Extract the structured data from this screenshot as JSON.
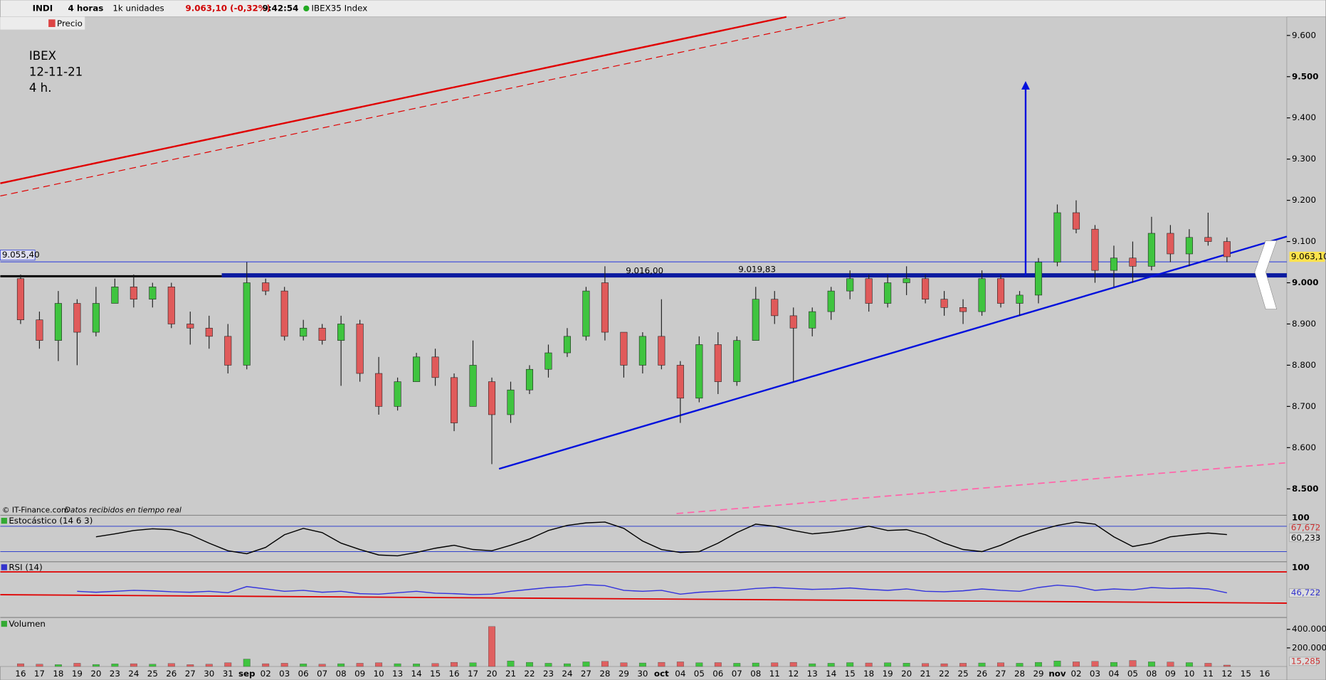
{
  "toolbar": {
    "symbol": "INDI",
    "period": "4 horas",
    "units": "1k unidades",
    "price_change": "9.063,10 (-0,32%)",
    "time": "9:42:54",
    "instrument": "IBEX35 Index",
    "layer": "Precio"
  },
  "notes": {
    "lines": [
      "IBEX",
      "12-11-21",
      "4 h."
    ],
    "credit": "© IT-Finance.com",
    "credit_note": "Datos recibidos en tiempo real"
  },
  "chart": {
    "type": "candlestick",
    "annotations": [
      {
        "label": "9.016,00"
      },
      {
        "label": "9.019,83"
      }
    ],
    "level_label": "9.055,40",
    "last_price_label": "9.063,10",
    "dates": [
      "16",
      "17",
      "18",
      "19",
      "20",
      "23",
      "24",
      "25",
      "26",
      "27",
      "30",
      "31",
      "sep",
      "02",
      "03",
      "06",
      "07",
      "08",
      "09",
      "10",
      "13",
      "14",
      "15",
      "16",
      "17",
      "20",
      "21",
      "22",
      "23",
      "24",
      "27",
      "28",
      "29",
      "30",
      "oct",
      "04",
      "05",
      "06",
      "07",
      "08",
      "11",
      "12",
      "13",
      "14",
      "15",
      "18",
      "19",
      "20",
      "21",
      "22",
      "25",
      "26",
      "27",
      "28",
      "29",
      "nov",
      "02",
      "03",
      "04",
      "05",
      "08",
      "09",
      "10",
      "11",
      "12",
      "15",
      "16"
    ],
    "open": [
      9010,
      8910,
      8860,
      8950,
      8880,
      8950,
      8990,
      8960,
      8990,
      8900,
      8890,
      8870,
      8800,
      9000,
      8980,
      8870,
      8890,
      8860,
      8900,
      8780,
      8700,
      8760,
      8820,
      8770,
      8700,
      8760,
      8680,
      8740,
      8790,
      8830,
      8870,
      9000,
      8880,
      8800,
      8870,
      8800,
      8720,
      8850,
      8760,
      8860,
      8960,
      8920,
      8890,
      8930,
      8980,
      9010,
      8950,
      9000,
      9010,
      8960,
      8940,
      8930,
      9010,
      8950,
      8970,
      9050,
      9170,
      9130,
      9030,
      9060,
      9040,
      9120,
      9070,
      9110,
      9100,
      null,
      null
    ],
    "high": [
      9020,
      8930,
      8980,
      8960,
      8990,
      9010,
      9020,
      9000,
      9000,
      8930,
      8920,
      8900,
      9050,
      9010,
      8990,
      8910,
      8900,
      8920,
      8910,
      8820,
      8770,
      8830,
      8840,
      8780,
      8860,
      8770,
      8760,
      8800,
      8850,
      8890,
      8990,
      9040,
      8880,
      8880,
      8960,
      8810,
      8870,
      8880,
      8870,
      8990,
      8980,
      8940,
      8940,
      8990,
      9030,
      9020,
      9020,
      9040,
      9020,
      8980,
      8960,
      9030,
      9020,
      8980,
      9060,
      9190,
      9200,
      9140,
      9090,
      9100,
      9160,
      9140,
      9130,
      9170,
      9110,
      null,
      null
    ],
    "low": [
      8900,
      8840,
      8810,
      8800,
      8870,
      8950,
      8940,
      8940,
      8890,
      8850,
      8840,
      8780,
      8790,
      8970,
      8860,
      8860,
      8850,
      8750,
      8760,
      8680,
      8690,
      8760,
      8750,
      8640,
      8700,
      8560,
      8660,
      8730,
      8770,
      8820,
      8860,
      8860,
      8770,
      8780,
      8790,
      8660,
      8710,
      8730,
      8750,
      8860,
      8900,
      8760,
      8870,
      8910,
      8960,
      8930,
      8940,
      8970,
      8950,
      8920,
      8900,
      8920,
      8940,
      8920,
      8950,
      9040,
      9120,
      9000,
      8990,
      9000,
      9030,
      9050,
      9040,
      9090,
      9050,
      null,
      null
    ],
    "close": [
      8910,
      8860,
      8950,
      8880,
      8950,
      8990,
      8960,
      8990,
      8900,
      8890,
      8870,
      8800,
      9000,
      8980,
      8870,
      8890,
      8860,
      8900,
      8780,
      8700,
      8760,
      8820,
      8770,
      8660,
      8800,
      8680,
      8740,
      8790,
      8830,
      8870,
      8980,
      8880,
      8800,
      8870,
      8800,
      8720,
      8850,
      8760,
      8860,
      8960,
      8920,
      8890,
      8930,
      8980,
      9010,
      8950,
      9000,
      9010,
      8960,
      8940,
      8930,
      9010,
      8950,
      8970,
      9050,
      9170,
      9130,
      9030,
      9060,
      9040,
      9120,
      9070,
      9110,
      9100,
      9063.1,
      null,
      null
    ],
    "ylim": [
      8440,
      9645
    ],
    "yticks": [
      {
        "value": 9600,
        "label": "9.600"
      },
      {
        "value": 9500,
        "label": "9.500"
      },
      {
        "value": 9400,
        "label": "9.400"
      },
      {
        "value": 9300,
        "label": "9.300"
      },
      {
        "value": 9200,
        "label": "9.200"
      },
      {
        "value": 9100,
        "label": "9.100"
      },
      {
        "value": 9000,
        "label": "9.000"
      },
      {
        "value": 8900,
        "label": "8.900"
      },
      {
        "value": 8800,
        "label": "8.800"
      },
      {
        "value": 8700,
        "label": "8.700"
      },
      {
        "value": 8600,
        "label": "8.600"
      },
      {
        "value": 8500,
        "label": "8.500"
      }
    ]
  },
  "stochastic": {
    "title": "Estocástico (14 6 3)",
    "color": "#000000",
    "ylim": [
      0,
      100
    ],
    "yticks": [
      100
    ],
    "readouts": [
      "67,672",
      "60,233"
    ],
    "values": [
      null,
      null,
      null,
      null,
      55,
      62,
      70,
      74,
      72,
      60,
      40,
      22,
      15,
      30,
      60,
      75,
      65,
      40,
      25,
      12,
      10,
      18,
      28,
      35,
      25,
      22,
      35,
      50,
      70,
      82,
      88,
      90,
      75,
      45,
      25,
      18,
      20,
      40,
      65,
      85,
      80,
      70,
      62,
      66,
      72,
      80,
      70,
      72,
      60,
      40,
      25,
      20,
      35,
      55,
      70,
      82,
      90,
      85,
      55,
      32,
      40,
      55,
      60,
      64,
      60.233,
      null,
      null
    ]
  },
  "rsi": {
    "title": "RSI (14)",
    "color": "#3333dd",
    "ylim": [
      0,
      100
    ],
    "yticks": [
      100
    ],
    "readout": "46,722",
    "values": [
      null,
      null,
      null,
      50,
      48,
      50,
      52,
      51,
      49,
      48,
      50,
      47,
      60,
      55,
      50,
      52,
      48,
      50,
      45,
      44,
      47,
      50,
      46,
      45,
      43,
      44,
      50,
      54,
      58,
      60,
      64,
      62,
      52,
      50,
      52,
      44,
      48,
      50,
      52,
      56,
      58,
      56,
      54,
      55,
      57,
      54,
      52,
      55,
      50,
      49,
      51,
      55,
      52,
      50,
      58,
      63,
      60,
      52,
      55,
      53,
      58,
      56,
      57,
      55,
      46.722,
      null,
      null
    ]
  },
  "volume": {
    "title": "Volumen",
    "color": "#e06060",
    "yticks": [
      {
        "value": 400000,
        "label": "400.000"
      },
      {
        "value": 200000,
        "label": "200.000"
      }
    ],
    "values": [
      30000,
      25000,
      20000,
      35000,
      22000,
      28000,
      30000,
      25000,
      32000,
      20000,
      25000,
      40000,
      80000,
      30000,
      35000,
      28000,
      25000,
      30000,
      35000,
      40000,
      30000,
      28000,
      32000,
      45000,
      40000,
      430000,
      60000,
      45000,
      35000,
      30000,
      50000,
      55000,
      40000,
      38000,
      45000,
      50000,
      40000,
      42000,
      35000,
      38000,
      40000,
      45000,
      30000,
      35000,
      42000,
      38000,
      40000,
      36000,
      32000,
      30000,
      35000,
      38000,
      40000,
      35000,
      45000,
      60000,
      50000,
      55000,
      45000,
      65000,
      50000,
      48000,
      42000,
      35000,
      15285,
      null,
      null
    ],
    "last_label": "15,285"
  }
}
